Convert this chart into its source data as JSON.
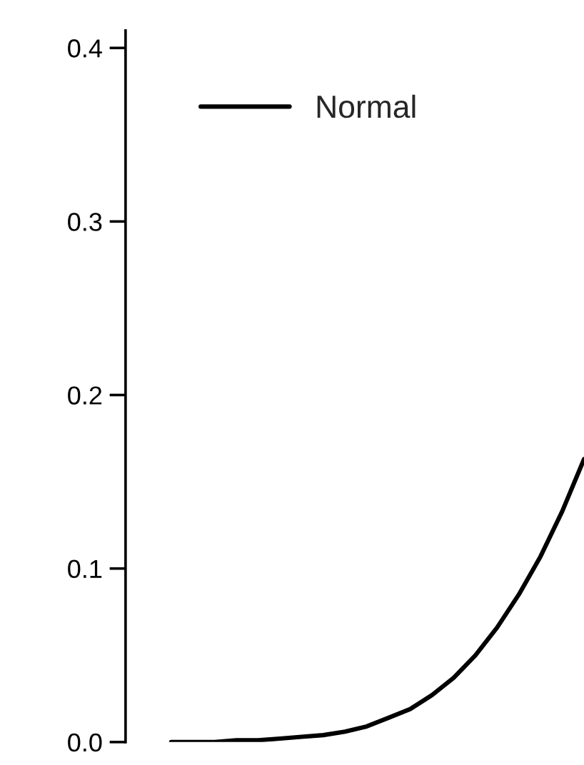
{
  "chart_data": {
    "type": "line",
    "categories": [
      null,
      null,
      null,
      null,
      null,
      null,
      null,
      null,
      null,
      null,
      null,
      null,
      null,
      null,
      null,
      null,
      null,
      null,
      null,
      null
    ],
    "series": [
      {
        "name": "Normal",
        "color": "#000000",
        "values": [
          0.0,
          0.0,
          0.0,
          0.001,
          0.001,
          0.002,
          0.003,
          0.004,
          0.006,
          0.009,
          0.014,
          0.019,
          0.027,
          0.037,
          0.05,
          0.066,
          0.085,
          0.107,
          0.133,
          0.163
        ]
      }
    ],
    "ylim": [
      0,
      0.41
    ],
    "yticks": [
      {
        "value": 0,
        "label": "0.0"
      },
      {
        "value": 0.1,
        "label": "0.1"
      },
      {
        "value": 0.2,
        "label": "0.2"
      },
      {
        "value": 0.3,
        "label": "0.3"
      },
      {
        "value": 0.4,
        "label": "0.4"
      }
    ],
    "tick_labels": "y",
    "grid": false,
    "legend": "top",
    "marker": "none",
    "line_style": "solid"
  }
}
